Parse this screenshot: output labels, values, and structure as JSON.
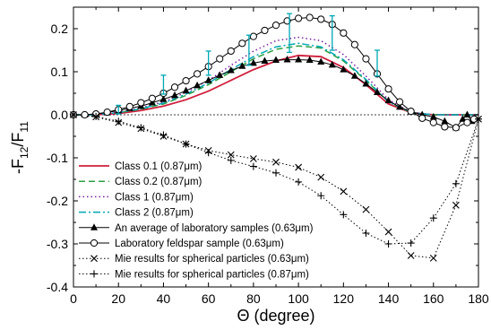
{
  "chart_data": {
    "type": "line",
    "xlabel": "Θ (degree)",
    "ylabel_main": "-F",
    "ylabel_sub1": "12",
    "ylabel_mid": "/F",
    "ylabel_sub2": "11",
    "xlim": [
      0,
      180
    ],
    "ylim": [
      -0.4,
      0.25
    ],
    "xticks": [
      "0",
      "20",
      "40",
      "60",
      "80",
      "100",
      "120",
      "140",
      "160",
      "180"
    ],
    "yticks": [
      "-0.4",
      "-0.3",
      "-0.2",
      "-0.1",
      "0.0",
      "0.1",
      "0.2"
    ],
    "legend_placement": "bottom-left",
    "colors": {
      "class01": "#d01f3c",
      "class02": "#2ea043",
      "class1": "#7b1fa2",
      "class2": "#00a7b5",
      "errorbar": "#00a7b5",
      "black": "#000000"
    },
    "series": [
      {
        "name": "Class 0.1 (0.87μm)",
        "style": "solid-red",
        "x": [
          0,
          10,
          20,
          30,
          40,
          50,
          60,
          70,
          80,
          90,
          100,
          110,
          120,
          130,
          140,
          150,
          160,
          170,
          180
        ],
        "y": [
          0,
          0,
          0.003,
          0.01,
          0.02,
          0.035,
          0.055,
          0.08,
          0.105,
          0.125,
          0.138,
          0.135,
          0.11,
          0.07,
          0.025,
          0.005,
          0,
          0,
          0
        ]
      },
      {
        "name": "Class 0.2 (0.87μm)",
        "style": "dashed-green",
        "x": [
          0,
          10,
          20,
          30,
          40,
          50,
          60,
          70,
          80,
          90,
          100,
          110,
          120,
          130,
          140,
          150,
          160,
          170,
          180
        ],
        "y": [
          0,
          0,
          0.005,
          0.013,
          0.025,
          0.045,
          0.07,
          0.1,
          0.13,
          0.152,
          0.16,
          0.155,
          0.125,
          0.08,
          0.03,
          0.005,
          0,
          0,
          0
        ]
      },
      {
        "name": "Class 1 (0.87μm)",
        "style": "dotted-purple",
        "x": [
          0,
          10,
          20,
          30,
          40,
          50,
          60,
          70,
          80,
          90,
          100,
          110,
          120,
          130,
          140,
          150,
          160,
          170,
          180
        ],
        "y": [
          0,
          0,
          0.006,
          0.016,
          0.03,
          0.052,
          0.08,
          0.115,
          0.148,
          0.172,
          0.18,
          0.172,
          0.14,
          0.09,
          0.035,
          0.006,
          0,
          0,
          0
        ]
      },
      {
        "name": "Class 2 (0.87μm)",
        "style": "dashdot-cyan",
        "x": [
          0,
          10,
          20,
          30,
          40,
          50,
          60,
          70,
          80,
          90,
          100,
          110,
          120,
          130,
          140,
          150,
          160,
          170,
          180
        ],
        "y": [
          0,
          0,
          0.005,
          0.014,
          0.027,
          0.048,
          0.074,
          0.105,
          0.135,
          0.158,
          0.166,
          0.158,
          0.128,
          0.082,
          0.03,
          0.005,
          0,
          0,
          0
        ]
      },
      {
        "name": "An average of laboratory samples (0.63μm)",
        "style": "triangles",
        "x": [
          0,
          5,
          10,
          15,
          20,
          25,
          30,
          35,
          40,
          45,
          50,
          55,
          60,
          65,
          70,
          75,
          80,
          85,
          90,
          95,
          100,
          105,
          110,
          115,
          120,
          125,
          130,
          135,
          140,
          145,
          150,
          155,
          160,
          165,
          170,
          173,
          175,
          177
        ],
        "y": [
          0,
          0,
          0.002,
          0.005,
          0.01,
          0.015,
          0.02,
          0.028,
          0.036,
          0.045,
          0.056,
          0.068,
          0.08,
          0.092,
          0.103,
          0.113,
          0.12,
          0.125,
          0.127,
          0.128,
          0.128,
          0.127,
          0.123,
          0.116,
          0.105,
          0.09,
          0.072,
          0.052,
          0.033,
          0.018,
          0.007,
          0.0,
          -0.005,
          -0.015,
          -0.03,
          -0.01,
          0.0,
          -0.015
        ]
      },
      {
        "name": "Laboratory feldspar sample (0.63μm)",
        "style": "open-circles",
        "x": [
          0,
          5,
          10,
          15,
          20,
          25,
          30,
          35,
          40,
          45,
          50,
          55,
          60,
          65,
          70,
          75,
          80,
          85,
          90,
          95,
          100,
          105,
          110,
          115,
          120,
          125,
          130,
          135,
          140,
          145,
          150,
          155,
          160,
          165,
          170,
          175,
          178
        ],
        "y": [
          0,
          0,
          0.002,
          0.006,
          0.012,
          0.019,
          0.028,
          0.038,
          0.05,
          0.064,
          0.079,
          0.095,
          0.112,
          0.13,
          0.148,
          0.166,
          0.182,
          0.196,
          0.208,
          0.218,
          0.224,
          0.226,
          0.222,
          0.21,
          0.19,
          0.163,
          0.13,
          0.095,
          0.06,
          0.03,
          0.008,
          -0.008,
          -0.018,
          -0.028,
          -0.03,
          -0.018,
          -0.01
        ]
      },
      {
        "name": "Mie results for spherical particles (0.63μm)",
        "style": "x-dotted",
        "x": [
          0,
          10,
          20,
          30,
          40,
          50,
          60,
          70,
          80,
          90,
          100,
          110,
          120,
          130,
          140,
          150,
          160,
          170,
          180
        ],
        "y": [
          0,
          -0.005,
          -0.018,
          -0.032,
          -0.05,
          -0.068,
          -0.083,
          -0.093,
          -0.102,
          -0.11,
          -0.122,
          -0.145,
          -0.178,
          -0.22,
          -0.272,
          -0.327,
          -0.333,
          -0.21,
          -0.01
        ]
      },
      {
        "name": "Mie results for spherical particles (0.87μm)",
        "style": "plus-dotted",
        "x": [
          0,
          10,
          20,
          30,
          40,
          50,
          60,
          70,
          80,
          90,
          100,
          110,
          120,
          130,
          140,
          150,
          160,
          170,
          180
        ],
        "y": [
          0,
          -0.004,
          -0.015,
          -0.03,
          -0.047,
          -0.068,
          -0.088,
          -0.106,
          -0.12,
          -0.135,
          -0.156,
          -0.188,
          -0.232,
          -0.275,
          -0.3,
          -0.298,
          -0.24,
          -0.16,
          -0.01
        ]
      }
    ],
    "errorbars": {
      "x": [
        20,
        40,
        60,
        78,
        96,
        115,
        135
      ],
      "y": [
        0.012,
        0.07,
        0.12,
        0.15,
        0.19,
        0.19,
        0.12
      ],
      "err": [
        0.01,
        0.022,
        0.028,
        0.035,
        0.045,
        0.04,
        0.03
      ]
    }
  }
}
